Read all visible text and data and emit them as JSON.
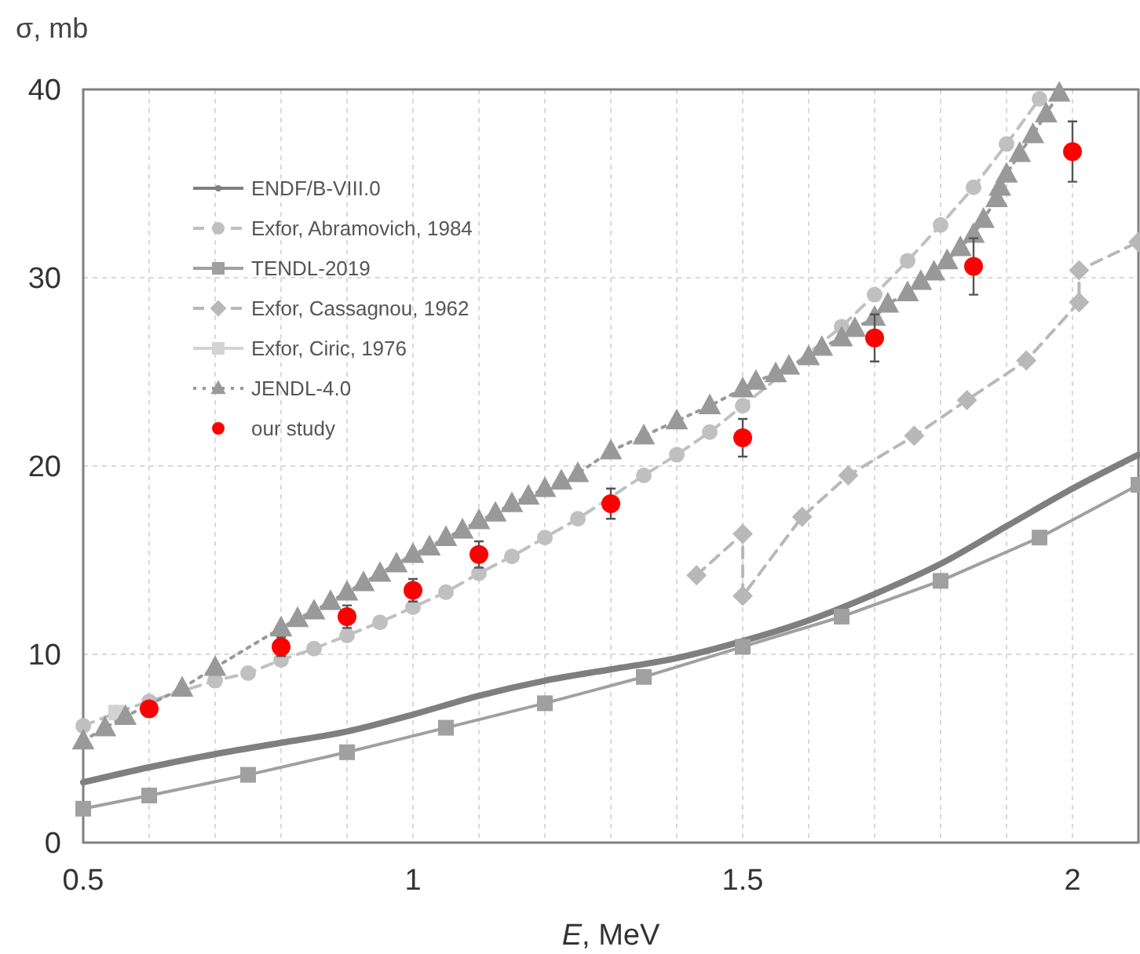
{
  "chart_data": {
    "type": "line",
    "xlabel": "E, MeV",
    "ylabel": "σ, mb",
    "xlim": [
      0.5,
      2.1
    ],
    "ylim": [
      0,
      40
    ],
    "xticks": [
      0.5,
      {
        "value": 0.6,
        "label": null
      },
      {
        "value": 0.7,
        "label": null
      },
      {
        "value": 0.8,
        "label": null
      },
      {
        "value": 0.9,
        "label": null
      },
      1,
      {
        "value": 1.1,
        "label": null
      },
      {
        "value": 1.2,
        "label": null
      },
      {
        "value": 1.3,
        "label": null
      },
      {
        "value": 1.4,
        "label": null
      },
      1.5,
      {
        "value": 1.6,
        "label": null
      },
      {
        "value": 1.7,
        "label": null
      },
      {
        "value": 1.8,
        "label": null
      },
      {
        "value": 1.9,
        "label": null
      },
      2
    ],
    "yticks": [
      0,
      10,
      20,
      30,
      40
    ],
    "grid": true,
    "legend": "top left",
    "series": [
      {
        "name": "ENDF/B-VIII.0",
        "color": "#7f7f7f",
        "marker": "none",
        "line_style": "solid",
        "x": [
          0.5,
          0.6,
          0.7,
          0.8,
          0.9,
          1.0,
          1.1,
          1.2,
          1.3,
          1.4,
          1.5,
          1.6,
          1.7,
          1.8,
          1.9,
          2.0,
          2.1
        ],
        "values": [
          3.2,
          4.0,
          4.7,
          5.3,
          5.9,
          6.8,
          7.8,
          8.6,
          9.2,
          9.8,
          10.7,
          11.8,
          13.2,
          14.8,
          16.8,
          18.8,
          20.6
        ]
      },
      {
        "name": "Exfor, Abramovich, 1984",
        "color": "#c0c0c0",
        "marker": "circle",
        "line_style": "dashed",
        "x": [
          0.5,
          0.55,
          0.6,
          0.65,
          0.7,
          0.75,
          0.8,
          0.85,
          0.9,
          0.95,
          1.0,
          1.05,
          1.1,
          1.15,
          1.2,
          1.25,
          1.3,
          1.35,
          1.4,
          1.45,
          1.5,
          1.55,
          1.6,
          1.65,
          1.7,
          1.75,
          1.8,
          1.85,
          1.9,
          1.95
        ],
        "values": [
          6.2,
          6.9,
          7.5,
          null,
          8.6,
          9.0,
          9.7,
          10.3,
          11.0,
          11.7,
          12.5,
          13.3,
          14.3,
          15.2,
          16.2,
          17.2,
          null,
          19.5,
          20.6,
          21.8,
          23.2,
          null,
          null,
          27.4,
          29.1,
          30.9,
          32.8,
          34.8,
          37.1,
          39.5
        ]
      },
      {
        "name": "TENDL-2019",
        "color": "#a0a0a0",
        "marker": "square",
        "line_style": "solid",
        "x": [
          0.5,
          0.6,
          0.75,
          0.9,
          1.05,
          1.2,
          1.35,
          1.5,
          1.65,
          1.8,
          1.95,
          2.1
        ],
        "values": [
          1.8,
          2.5,
          3.6,
          4.8,
          6.1,
          7.4,
          8.8,
          10.4,
          12.0,
          13.9,
          16.2,
          19.0
        ]
      },
      {
        "name": "Exfor, Cassagnou, 1962",
        "color": "#b8b8b8",
        "marker": "diamond",
        "line_style": "dashed",
        "x": [
          1.43,
          1.5,
          1.5,
          1.59,
          1.66,
          1.76,
          1.84,
          1.93,
          2.01,
          2.01,
          2.1
        ],
        "values": [
          14.2,
          16.4,
          13.1,
          17.3,
          19.5,
          21.6,
          23.5,
          25.6,
          28.7,
          30.4,
          31.9
        ]
      },
      {
        "name": "Exfor, Ciric, 1976",
        "color": "#d3d3d3",
        "marker": "square",
        "line_style": "solid",
        "x": [
          0.55
        ],
        "values": [
          6.9
        ]
      },
      {
        "name": "JENDL-4.0",
        "color": "#999999",
        "marker": "triangle",
        "line_style": "dotted",
        "x": [
          0.5,
          0.533,
          0.564,
          0.6,
          0.65,
          0.7,
          0.8,
          0.825,
          0.85,
          0.875,
          0.9,
          0.925,
          0.95,
          0.975,
          1.0,
          1.025,
          1.05,
          1.075,
          1.1,
          1.125,
          1.15,
          1.175,
          1.2,
          1.225,
          1.25,
          1.3,
          1.35,
          1.4,
          1.45,
          1.5,
          1.52,
          1.55,
          1.57,
          1.6,
          1.62,
          1.65,
          1.67,
          1.7,
          1.72,
          1.75,
          1.77,
          1.79,
          1.81,
          1.83,
          1.85,
          1.865,
          1.885,
          1.89,
          1.9,
          1.92,
          1.94,
          1.96,
          1.98
        ],
        "values": [
          5.4,
          6.1,
          6.7,
          null,
          8.2,
          9.3,
          11.4,
          11.9,
          12.3,
          12.8,
          13.3,
          13.8,
          14.3,
          14.8,
          15.3,
          15.7,
          16.2,
          16.6,
          17.1,
          17.5,
          18.0,
          18.4,
          18.8,
          19.2,
          19.6,
          20.8,
          21.6,
          22.4,
          23.2,
          24.1,
          24.5,
          24.9,
          25.3,
          25.8,
          26.3,
          26.8,
          27.3,
          27.9,
          28.6,
          29.2,
          29.8,
          30.3,
          30.9,
          31.6,
          32.3,
          33.1,
          34.2,
          34.8,
          35.5,
          36.6,
          37.6,
          38.7,
          39.8
        ]
      },
      {
        "name": "our study",
        "type": "scatter",
        "color": "#ff0000",
        "marker": "circle",
        "x": [
          0.6,
          0.8,
          0.9,
          1.0,
          1.1,
          1.3,
          1.5,
          1.7,
          1.85,
          2.0
        ],
        "values": [
          7.1,
          10.4,
          12.0,
          13.4,
          15.3,
          18.0,
          21.5,
          26.8,
          30.6,
          36.7
        ],
        "errors": [
          null,
          0.5,
          0.6,
          0.6,
          0.7,
          0.8,
          1.0,
          1.25,
          1.5,
          1.6
        ]
      }
    ]
  }
}
